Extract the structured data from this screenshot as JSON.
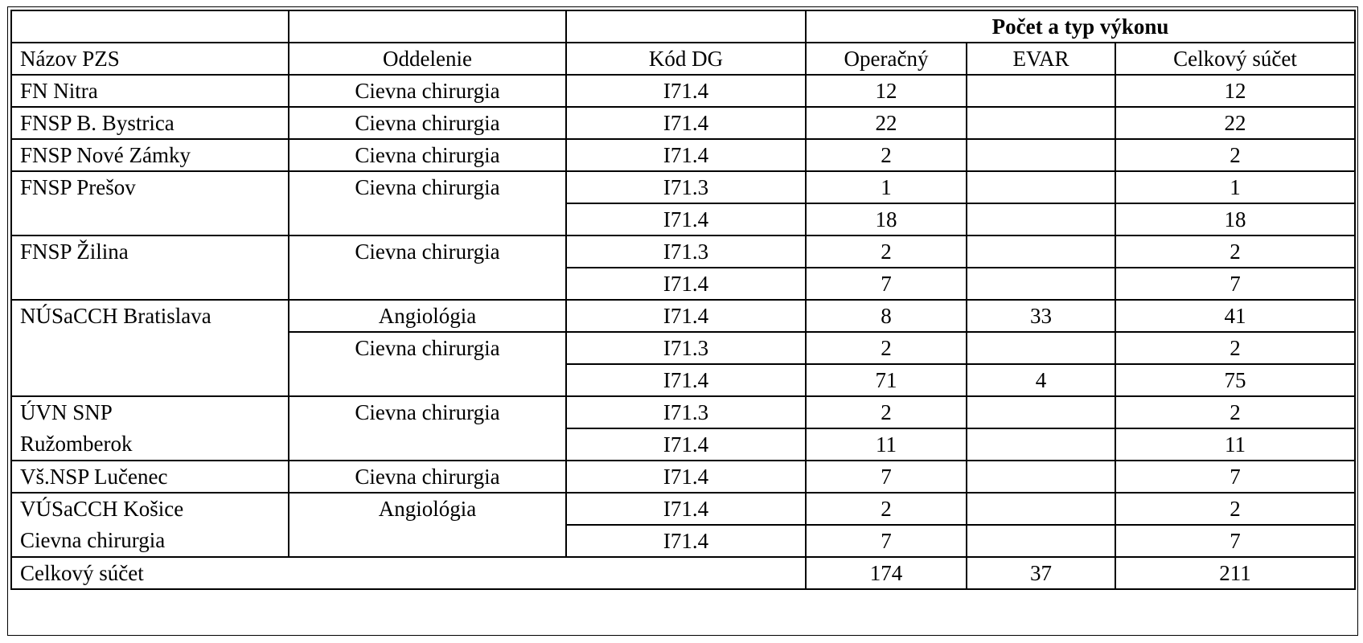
{
  "table": {
    "group_header": "Počet a typ výkonu",
    "columns": [
      "Názov PZS",
      "Oddelenie",
      "Kód DG",
      "Operačný",
      "EVAR",
      "Celkový súčet"
    ],
    "rows": [
      [
        "FN Nitra",
        "Cievna chirurgia",
        "I71.4",
        "12",
        "",
        "12"
      ],
      [
        "FNSP B. Bystrica",
        "Cievna chirurgia",
        "I71.4",
        "22",
        "",
        "22"
      ],
      [
        "FNSP Nové Zámky",
        "Cievna chirurgia",
        "I71.4",
        "2",
        "",
        "2"
      ],
      [
        "FNSP Prešov",
        "Cievna chirurgia",
        "I71.3",
        "1",
        "",
        "1"
      ],
      [
        "",
        "",
        "I71.4",
        "18",
        "",
        "18"
      ],
      [
        "FNSP Žilina",
        "Cievna chirurgia",
        "I71.3",
        "2",
        "",
        "2"
      ],
      [
        "",
        "",
        "I71.4",
        "7",
        "",
        "7"
      ],
      [
        "NÚSaCCH Bratislava",
        "Angiológia",
        "I71.4",
        "8",
        "33",
        "41"
      ],
      [
        "",
        "Cievna chirurgia",
        "I71.3",
        "2",
        "",
        "2"
      ],
      [
        "",
        "",
        "I71.4",
        "71",
        "4",
        "75"
      ],
      [
        "ÚVN SNP",
        "Cievna chirurgia",
        "I71.3",
        "2",
        "",
        "2"
      ],
      [
        "Ružomberok",
        "",
        "I71.4",
        "11",
        "",
        "11"
      ],
      [
        "Vš.NSP Lučenec",
        "Cievna chirurgia",
        "I71.4",
        "7",
        "",
        "7"
      ],
      [
        "VÚSaCCH Košice",
        "Angiológia",
        "I71.4",
        "2",
        "",
        "2"
      ],
      [
        "Cievna chirurgia",
        "",
        "I71.4",
        "7",
        "",
        "7"
      ]
    ],
    "total": {
      "label": "Celkový súčet",
      "operacny": "174",
      "evar": "37",
      "celkovy": "211"
    }
  }
}
